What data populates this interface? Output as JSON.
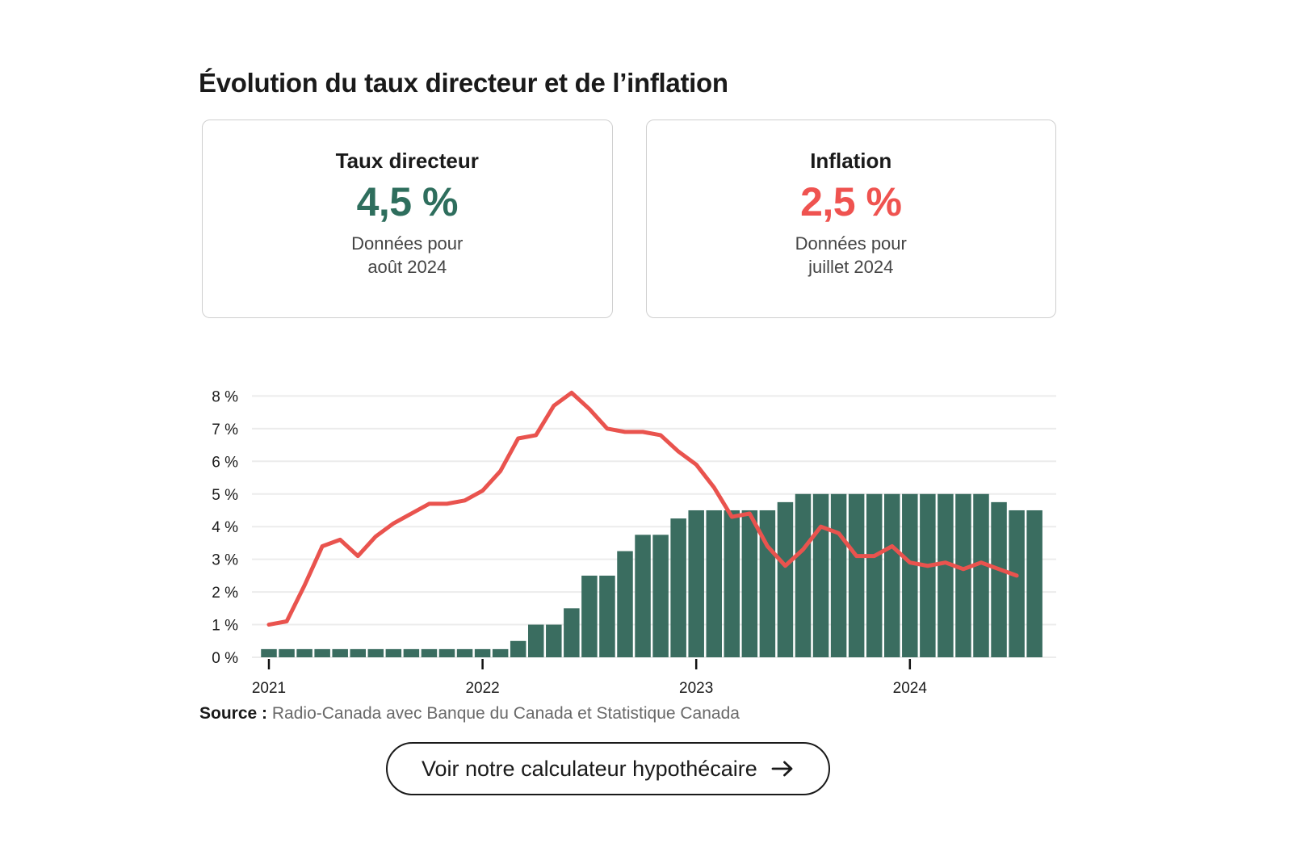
{
  "page": {
    "title": "Évolution du taux directeur et de l’inflation",
    "source_label": "Source :",
    "source_text": "Radio-Canada avec Banque du Canada et Statistique Canada",
    "cta_label": "Voir notre calculateur hypothécaire"
  },
  "cards": [
    {
      "title": "Taux directeur",
      "value": "4,5 %",
      "caption_line1": "Données pour",
      "caption_line2": "août 2024",
      "color": "#2E6E5D"
    },
    {
      "title": "Inflation",
      "value": "2,5 %",
      "caption_line1": "Données pour",
      "caption_line2": "juillet 2024",
      "color": "#EF5350"
    }
  ],
  "chart_data": {
    "type": "bar+line combo",
    "grid": "horizontal",
    "legend": "none",
    "x_months": [
      "2021-01",
      "2021-02",
      "2021-03",
      "2021-04",
      "2021-05",
      "2021-06",
      "2021-07",
      "2021-08",
      "2021-09",
      "2021-10",
      "2021-11",
      "2021-12",
      "2022-01",
      "2022-02",
      "2022-03",
      "2022-04",
      "2022-05",
      "2022-06",
      "2022-07",
      "2022-08",
      "2022-09",
      "2022-10",
      "2022-11",
      "2022-12",
      "2023-01",
      "2023-02",
      "2023-03",
      "2023-04",
      "2023-05",
      "2023-06",
      "2023-07",
      "2023-08",
      "2023-09",
      "2023-10",
      "2023-11",
      "2023-12",
      "2024-01",
      "2024-02",
      "2024-03",
      "2024-04",
      "2024-05",
      "2024-06",
      "2024-07",
      "2024-08"
    ],
    "series": [
      {
        "name": "Taux directeur",
        "type": "bar",
        "unit": "%",
        "values": [
          0.25,
          0.25,
          0.25,
          0.25,
          0.25,
          0.25,
          0.25,
          0.25,
          0.25,
          0.25,
          0.25,
          0.25,
          0.25,
          0.25,
          0.5,
          1.0,
          1.0,
          1.5,
          2.5,
          2.5,
          3.25,
          3.75,
          3.75,
          4.25,
          4.5,
          4.5,
          4.5,
          4.5,
          4.5,
          4.75,
          5.0,
          5.0,
          5.0,
          5.0,
          5.0,
          5.0,
          5.0,
          5.0,
          5.0,
          5.0,
          5.0,
          4.75,
          4.5,
          4.5
        ]
      },
      {
        "name": "Inflation",
        "type": "line",
        "unit": "%",
        "values": [
          1.0,
          1.1,
          2.2,
          3.4,
          3.6,
          3.1,
          3.7,
          4.1,
          4.4,
          4.7,
          4.7,
          4.8,
          5.1,
          5.7,
          6.7,
          6.8,
          7.7,
          8.1,
          7.6,
          7.0,
          6.9,
          6.9,
          6.8,
          6.3,
          5.9,
          5.2,
          4.3,
          4.4,
          3.4,
          2.8,
          3.3,
          4.0,
          3.8,
          3.1,
          3.1,
          3.4,
          2.9,
          2.8,
          2.9,
          2.7,
          2.9,
          2.7,
          2.5,
          null
        ]
      }
    ],
    "y_axis": {
      "ylim": [
        0,
        8.5
      ],
      "ticks": [
        0,
        1,
        2,
        3,
        4,
        5,
        6,
        7,
        8
      ],
      "tick_suffix": " %"
    },
    "x_axis": {
      "tick_month_indices": [
        0,
        12,
        24,
        36
      ],
      "tick_labels": [
        "2021",
        "2022",
        "2023",
        "2024"
      ]
    },
    "colors": {
      "bar": "#3A6D60",
      "line": "#E9534E",
      "grid": "#ECECEC",
      "tick": "#111111",
      "axis_text": "#1A1A1A"
    }
  }
}
